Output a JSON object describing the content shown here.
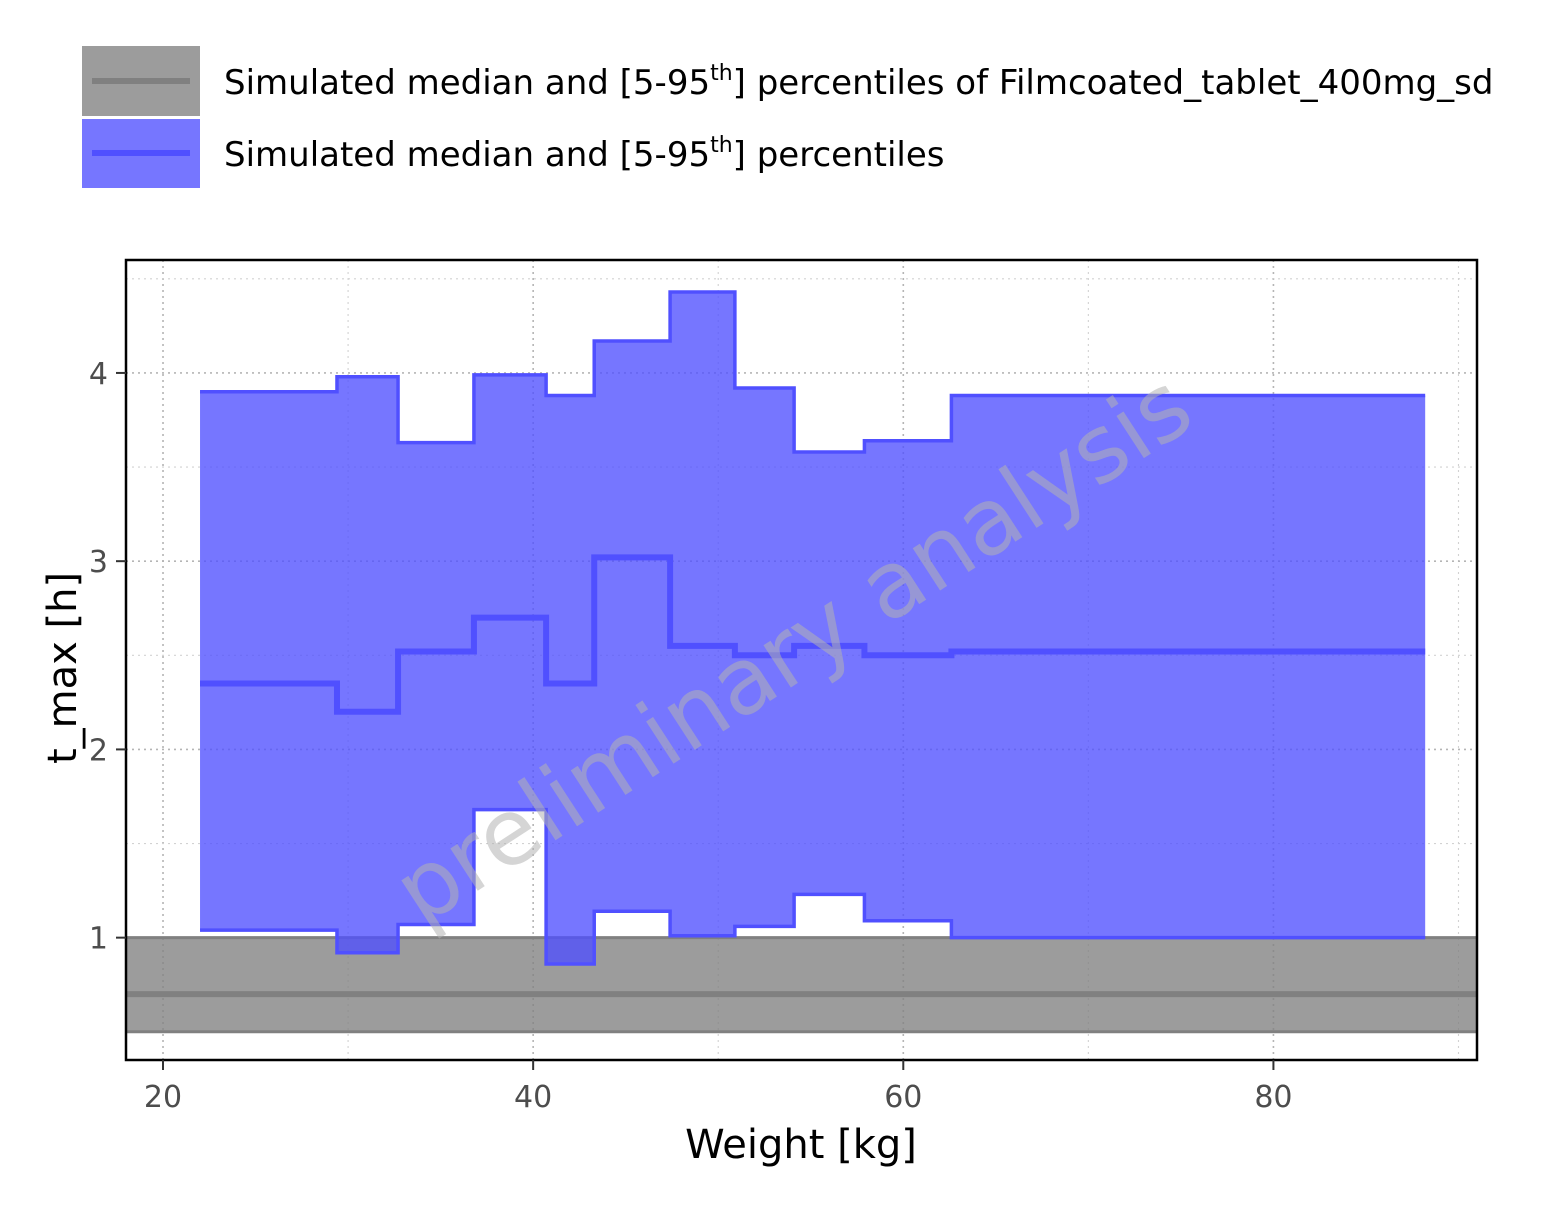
{
  "chart_data": {
    "type": "area",
    "xlabel": "Weight [kg]",
    "ylabel": "t_max [h]",
    "xlim": [
      18,
      91
    ],
    "ylim": [
      0.35,
      4.6
    ],
    "x_ticks": [
      20,
      40,
      60,
      80
    ],
    "y_ticks": [
      1,
      2,
      3,
      4
    ],
    "grid": true,
    "legend_position": "top",
    "watermark": "preliminary analysis",
    "series": [
      {
        "name": "Simulated median and [5-95th] percentiles of Filmcoated_tablet_400mg_sd",
        "legend_main": "Simulated median and [5-95",
        "legend_sup": "th",
        "legend_rest": "] percentiles of Filmcoated_tablet_400mg_sd",
        "color": "#808080",
        "kind": "reference-band",
        "median": 0.7,
        "lower": 0.5,
        "upper": 1.0
      },
      {
        "name": "Simulated median and [5-95th] percentiles",
        "legend_main": "Simulated median and [5-95",
        "legend_sup": "th",
        "legend_rest": "] percentiles",
        "color": "#5050ff",
        "kind": "step-band",
        "bins": [
          {
            "x0": 22.0,
            "x1": 29.4,
            "lower": 1.04,
            "median": 2.35,
            "upper": 3.9
          },
          {
            "x0": 29.4,
            "x1": 32.7,
            "lower": 0.92,
            "median": 2.2,
            "upper": 3.98
          },
          {
            "x0": 32.7,
            "x1": 36.8,
            "lower": 1.07,
            "median": 2.52,
            "upper": 3.63
          },
          {
            "x0": 36.8,
            "x1": 40.7,
            "lower": 1.68,
            "median": 2.7,
            "upper": 3.99
          },
          {
            "x0": 40.7,
            "x1": 43.3,
            "lower": 0.86,
            "median": 2.35,
            "upper": 3.88
          },
          {
            "x0": 43.3,
            "x1": 47.4,
            "lower": 1.14,
            "median": 3.02,
            "upper": 4.17
          },
          {
            "x0": 47.4,
            "x1": 50.9,
            "lower": 1.01,
            "median": 2.55,
            "upper": 4.43
          },
          {
            "x0": 50.9,
            "x1": 54.1,
            "lower": 1.06,
            "median": 2.5,
            "upper": 3.92
          },
          {
            "x0": 54.1,
            "x1": 57.9,
            "lower": 1.23,
            "median": 2.55,
            "upper": 3.58
          },
          {
            "x0": 57.9,
            "x1": 62.6,
            "lower": 1.09,
            "median": 2.5,
            "upper": 3.64
          },
          {
            "x0": 62.6,
            "x1": 88.2,
            "lower": 1.0,
            "median": 2.52,
            "upper": 3.88
          }
        ]
      }
    ]
  }
}
